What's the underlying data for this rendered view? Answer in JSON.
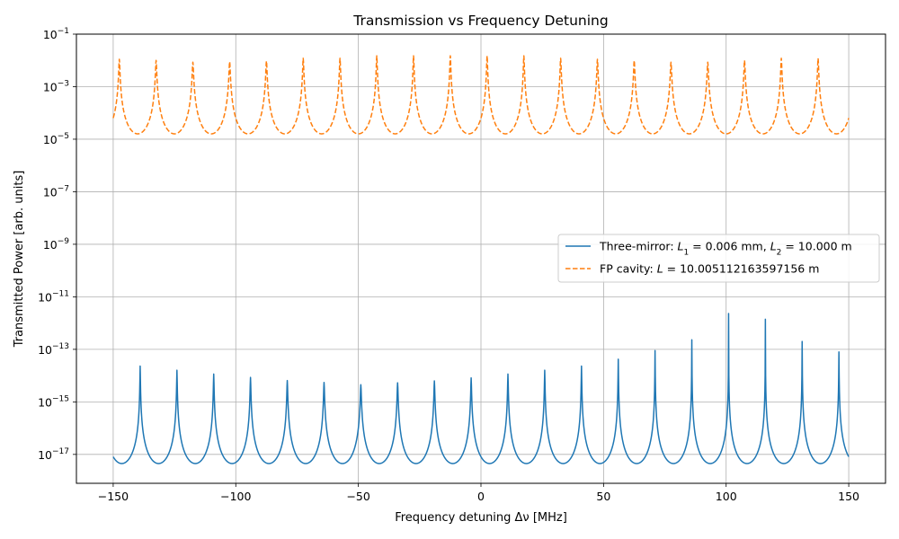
{
  "chart_data": {
    "type": "line",
    "title": "Transmission vs Frequency Detuning",
    "xlabel": "Frequency detuning Δν [MHz]",
    "ylabel": "Transmitted Power [arb. units]",
    "xlim": [
      -165,
      165
    ],
    "ylim_log10": [
      -18.1,
      -1
    ],
    "y_scale": "log",
    "grid": true,
    "legend_placement": "center-right",
    "x_ticks": [
      -150,
      -100,
      -50,
      0,
      50,
      100,
      150
    ],
    "x_tick_labels": [
      "−150",
      "−100",
      "−50",
      "0",
      "50",
      "100",
      "150"
    ],
    "y_ticks_log10": [
      -17,
      -15,
      -13,
      -11,
      -9,
      -7,
      -5,
      -3,
      -1
    ],
    "y_tick_labels": [
      {
        "base": "10",
        "exp": "−17"
      },
      {
        "base": "10",
        "exp": "−15"
      },
      {
        "base": "10",
        "exp": "−13"
      },
      {
        "base": "10",
        "exp": "−11"
      },
      {
        "base": "10",
        "exp": "−9"
      },
      {
        "base": "10",
        "exp": "−7"
      },
      {
        "base": "10",
        "exp": "−5"
      },
      {
        "base": "10",
        "exp": "−3"
      },
      {
        "base": "10",
        "exp": "−1"
      }
    ],
    "x_range": [
      -150,
      150
    ],
    "series": [
      {
        "name": "Three-mirror: L1 = 0.006 mm, L2 = 10.000 m",
        "legend_parts": [
          {
            "t": "Three-mirror: ",
            "i": false
          },
          {
            "t": "L",
            "i": true
          },
          {
            "t": "1",
            "sub": true
          },
          {
            "t": " = 0.006 mm, ",
            "i": false
          },
          {
            "t": "L",
            "i": true
          },
          {
            "t": "2",
            "sub": true
          },
          {
            "t": " = 10.000 m",
            "i": false
          }
        ],
        "color": "#1f77b4",
        "style": "solid",
        "baseline_min": 4.5e-18,
        "peak_positions": [
          -139,
          -124,
          -109,
          -94,
          -79,
          -64,
          -49,
          -34,
          -19,
          -4,
          11,
          26,
          41,
          56,
          71,
          86,
          101,
          116,
          131,
          146
        ],
        "peak_values": [
          2.3e-14,
          1.6e-14,
          1.15e-14,
          8.5e-15,
          6.5e-15,
          5.5e-15,
          4.5e-15,
          5.3e-15,
          6.3e-15,
          8.2e-15,
          1.15e-14,
          1.6e-14,
          2.3e-14,
          4.2e-14,
          9e-14,
          2.3e-13,
          2.3e-12,
          1.4e-12,
          2e-13,
          8e-14
        ]
      },
      {
        "name": "FP cavity: L = 10.005112163597156 m",
        "legend_parts": [
          {
            "t": "FP cavity: ",
            "i": false
          },
          {
            "t": "L",
            "i": true
          },
          {
            "t": " = 10.005112163597156 m",
            "i": false
          }
        ],
        "color": "#ff7f0e",
        "style": "dashed",
        "baseline_min": 1.6e-05,
        "peak_positions": [
          -147.5,
          -132.5,
          -117.5,
          -102.5,
          -87.5,
          -72.5,
          -57.5,
          -42.5,
          -27.5,
          -12.5,
          2.5,
          17.5,
          32.5,
          47.5,
          62.5,
          77.5,
          92.5,
          107.5,
          122.5,
          137.5
        ],
        "peak_values": [
          0.011,
          0.01,
          0.0085,
          0.009,
          0.0095,
          0.012,
          0.012,
          0.015,
          0.015,
          0.015,
          0.015,
          0.015,
          0.012,
          0.011,
          0.01,
          0.0085,
          0.0085,
          0.01,
          0.012,
          0.012
        ]
      }
    ]
  }
}
